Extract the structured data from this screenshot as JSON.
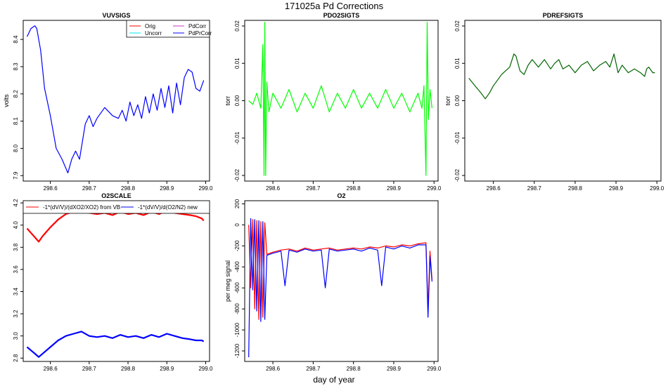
{
  "figure": {
    "title": "171025a   Pd Corrections",
    "xlabel": "day of year"
  },
  "colors": {
    "orig": "#ff0000",
    "uncorr": "#00e5ee",
    "pdcorr": "#cc33cc",
    "pdprcorr": "#0000ff",
    "green": "#00ff00",
    "dark_green": "#006400",
    "red": "#ff0000",
    "blue": "#0000ff"
  },
  "chart_data": [
    {
      "id": "vuvsigs",
      "type": "line",
      "title": "VUVSIGS",
      "xlabel": "",
      "ylabel": "volts",
      "xlim": [
        298.53,
        299.01
      ],
      "ylim": [
        7.88,
        8.47
      ],
      "xticks": [
        298.6,
        298.7,
        298.8,
        298.9,
        299.0
      ],
      "xticklabels": [
        "298.6",
        "298.7",
        "298.8",
        "298.9",
        "299.0"
      ],
      "yticks": [
        7.9,
        8.0,
        8.1,
        8.2,
        8.3,
        8.4
      ],
      "yticklabels": [
        "7.9",
        "8.0",
        "8.1",
        "8.2",
        "8.3",
        "8.4"
      ],
      "legend": {
        "position": "top-right",
        "entries": [
          {
            "label": "Orig",
            "color": "#ff0000"
          },
          {
            "label": "Uncorr",
            "color": "#00e5ee"
          },
          {
            "label": "PdCorr",
            "color": "#cc33cc"
          },
          {
            "label": "PdPrCorr",
            "color": "#0000ff"
          }
        ]
      },
      "series": [
        {
          "name": "PdPrCorr",
          "color": "#0000ff",
          "x": [
            298.54,
            298.55,
            298.56,
            298.565,
            298.575,
            298.585,
            298.6,
            298.615,
            298.63,
            298.645,
            298.655,
            298.665,
            298.675,
            298.69,
            298.7,
            298.71,
            298.72,
            298.74,
            298.76,
            298.775,
            298.785,
            298.795,
            298.805,
            298.815,
            298.825,
            298.835,
            298.845,
            298.855,
            298.865,
            298.875,
            298.885,
            298.895,
            298.905,
            298.915,
            298.925,
            298.935,
            298.945,
            298.955,
            298.965,
            298.975,
            298.985,
            298.995
          ],
          "y": [
            8.41,
            8.44,
            8.45,
            8.44,
            8.36,
            8.22,
            8.12,
            8.0,
            7.96,
            7.91,
            7.96,
            7.99,
            7.96,
            8.09,
            8.12,
            8.08,
            8.11,
            8.15,
            8.12,
            8.11,
            8.14,
            8.1,
            8.17,
            8.12,
            8.16,
            8.11,
            8.19,
            8.13,
            8.2,
            8.14,
            8.22,
            8.15,
            8.23,
            8.13,
            8.24,
            8.16,
            8.26,
            8.29,
            8.28,
            8.22,
            8.21,
            8.25
          ]
        }
      ]
    },
    {
      "id": "pdo2sigts",
      "type": "line",
      "title": "PDO2SIGTS",
      "xlabel": "",
      "ylabel": "torr",
      "xlim": [
        298.53,
        299.01
      ],
      "ylim": [
        -0.0215,
        0.0215
      ],
      "xticks": [
        298.6,
        298.7,
        298.8,
        298.9,
        299.0
      ],
      "xticklabels": [
        "298.6",
        "298.7",
        "298.8",
        "298.9",
        "299.0"
      ],
      "yticks": [
        -0.02,
        -0.01,
        0.0,
        0.01,
        0.02
      ],
      "yticklabels": [
        "-0.02",
        "-0.01",
        "0.00",
        "0.01",
        "0.02"
      ],
      "series": [
        {
          "color": "#00ff00",
          "x": [
            298.54,
            298.55,
            298.56,
            298.57,
            298.575,
            298.578,
            298.58,
            298.582,
            298.585,
            298.59,
            298.6,
            298.62,
            298.64,
            298.66,
            298.68,
            298.7,
            298.72,
            298.74,
            298.76,
            298.78,
            298.8,
            298.82,
            298.84,
            298.86,
            298.88,
            298.9,
            298.92,
            298.94,
            298.96,
            298.97,
            298.975,
            298.98,
            298.983,
            298.986,
            298.99,
            298.995
          ],
          "y": [
            0.0,
            -0.001,
            0.002,
            -0.002,
            0.015,
            -0.02,
            0.021,
            -0.02,
            0.005,
            -0.003,
            0.002,
            -0.002,
            0.003,
            -0.003,
            0.002,
            -0.002,
            0.004,
            -0.003,
            0.002,
            -0.002,
            0.003,
            -0.002,
            0.002,
            -0.002,
            0.003,
            -0.002,
            0.002,
            -0.003,
            0.002,
            -0.002,
            0.004,
            -0.02,
            0.021,
            -0.005,
            0.003,
            -0.002
          ]
        }
      ]
    },
    {
      "id": "pdrefsigts",
      "type": "line",
      "title": "PDREFSIGTS",
      "xlabel": "",
      "ylabel": "torr",
      "xlim": [
        298.53,
        299.01
      ],
      "ylim": [
        -0.0215,
        0.0215
      ],
      "xticks": [
        298.6,
        298.7,
        298.8,
        298.9,
        299.0
      ],
      "xticklabels": [
        "298.6",
        "298.7",
        "298.8",
        "298.9",
        "299.0"
      ],
      "yticks": [
        -0.02,
        -0.01,
        0.0,
        0.01,
        0.02
      ],
      "yticklabels": [
        "-0.02",
        "-0.01",
        "0.00",
        "0.01",
        "0.02"
      ],
      "series": [
        {
          "color": "#006400",
          "x": [
            298.54,
            298.555,
            298.57,
            298.58,
            298.59,
            298.6,
            298.62,
            298.64,
            298.65,
            298.655,
            298.665,
            298.675,
            298.685,
            298.695,
            298.71,
            298.725,
            298.74,
            298.75,
            298.76,
            298.77,
            298.785,
            298.8,
            298.815,
            298.83,
            298.845,
            298.86,
            298.875,
            298.885,
            298.895,
            298.905,
            298.915,
            298.93,
            298.945,
            298.96,
            298.97,
            298.975,
            298.98,
            298.99,
            298.995
          ],
          "y": [
            0.006,
            0.004,
            0.002,
            0.0005,
            0.002,
            0.004,
            0.007,
            0.009,
            0.0125,
            0.012,
            0.008,
            0.007,
            0.0095,
            0.011,
            0.009,
            0.011,
            0.0085,
            0.01,
            0.011,
            0.0085,
            0.0095,
            0.0075,
            0.0095,
            0.0105,
            0.008,
            0.0095,
            0.0105,
            0.009,
            0.0125,
            0.0075,
            0.0095,
            0.0075,
            0.0085,
            0.0075,
            0.0065,
            0.0085,
            0.009,
            0.0075,
            0.0075
          ]
        }
      ]
    },
    {
      "id": "o2scale",
      "type": "line",
      "title": "O2SCALE",
      "xlabel": "",
      "ylabel": "",
      "xlim": [
        298.53,
        299.01
      ],
      "ylim": [
        2.77,
        4.22
      ],
      "xticks": [
        298.6,
        298.7,
        298.8,
        298.9,
        299.0
      ],
      "xticklabels": [
        "298.6",
        "298.7",
        "298.8",
        "298.9",
        "299.0"
      ],
      "yticks": [
        2.8,
        3.0,
        3.2,
        3.4,
        3.6,
        3.8,
        4.0,
        4.2
      ],
      "yticklabels": [
        "2.8",
        "3.0",
        "3.2",
        "3.4",
        "3.6",
        "3.8",
        "4.0",
        "4.2"
      ],
      "legend": {
        "position": "top",
        "entries": [
          {
            "label": "-1*(dV/V)/(dXO2/XO2) from VB",
            "color": "#ff0000"
          },
          {
            "label": "-1*(dV/V)/d(O2/N2) new",
            "color": "#0000ff"
          }
        ]
      },
      "series": [
        {
          "color": "#ff0000",
          "x": [
            298.54,
            298.55,
            298.56,
            298.57,
            298.58,
            298.6,
            298.62,
            298.64,
            298.66,
            298.68,
            298.7,
            298.72,
            298.74,
            298.76,
            298.78,
            298.8,
            298.82,
            298.84,
            298.86,
            298.88,
            298.9,
            298.92,
            298.94,
            298.96,
            298.975,
            298.99,
            298.995
          ],
          "y": [
            3.97,
            3.93,
            3.89,
            3.85,
            3.9,
            3.98,
            4.05,
            4.1,
            4.12,
            4.13,
            4.11,
            4.1,
            4.11,
            4.09,
            4.12,
            4.1,
            4.11,
            4.09,
            4.12,
            4.1,
            4.13,
            4.11,
            4.1,
            4.09,
            4.08,
            4.06,
            4.04
          ]
        },
        {
          "color": "#0000ff",
          "x": [
            298.54,
            298.55,
            298.56,
            298.57,
            298.58,
            298.6,
            298.62,
            298.64,
            298.66,
            298.68,
            298.7,
            298.72,
            298.74,
            298.76,
            298.78,
            298.8,
            298.82,
            298.84,
            298.86,
            298.88,
            298.9,
            298.92,
            298.94,
            298.96,
            298.975,
            298.99,
            298.995
          ],
          "y": [
            2.9,
            2.87,
            2.84,
            2.81,
            2.84,
            2.9,
            2.96,
            3.0,
            3.02,
            3.04,
            3.0,
            2.99,
            3.0,
            2.98,
            3.01,
            2.99,
            3.0,
            2.98,
            3.01,
            2.99,
            3.02,
            3.0,
            2.98,
            2.97,
            2.96,
            2.96,
            2.95
          ]
        }
      ]
    },
    {
      "id": "o2",
      "type": "line",
      "title": "O2",
      "xlabel": "",
      "ylabel": "per meg signal",
      "xlim": [
        298.53,
        299.01
      ],
      "ylim": [
        -1300,
        230
      ],
      "xticks": [
        298.6,
        298.7,
        298.8,
        298.9,
        299.0
      ],
      "xticklabels": [
        "298.6",
        "298.7",
        "298.8",
        "298.9",
        "299.0"
      ],
      "yticks": [
        -1200,
        -1000,
        -800,
        -600,
        -400,
        -200,
        0,
        200
      ],
      "yticklabels": [
        "-1200",
        "-1000",
        "-800",
        "-600",
        "-400",
        "-200",
        "0",
        "200"
      ],
      "series": [
        {
          "color": "#ff0000",
          "x": [
            298.54,
            298.545,
            298.55,
            298.555,
            298.56,
            298.565,
            298.57,
            298.575,
            298.58,
            298.585,
            298.6,
            298.62,
            298.64,
            298.66,
            298.68,
            298.7,
            298.72,
            298.74,
            298.76,
            298.78,
            298.8,
            298.82,
            298.84,
            298.86,
            298.88,
            298.9,
            298.92,
            298.94,
            298.96,
            298.98,
            298.985,
            298.99,
            298.995
          ],
          "y": [
            0,
            -600,
            50,
            -800,
            40,
            -900,
            30,
            -880,
            20,
            -280,
            -260,
            -240,
            -230,
            -250,
            -220,
            -240,
            -230,
            -220,
            -240,
            -230,
            -220,
            -230,
            -210,
            -220,
            -200,
            -210,
            -190,
            -200,
            -180,
            -170,
            -800,
            -250,
            -520
          ]
        },
        {
          "color": "#0000ff",
          "x": [
            298.54,
            298.545,
            298.55,
            298.555,
            298.56,
            298.565,
            298.57,
            298.575,
            298.58,
            298.585,
            298.6,
            298.62,
            298.63,
            298.64,
            298.66,
            298.68,
            298.7,
            298.72,
            298.73,
            298.74,
            298.76,
            298.78,
            298.8,
            298.82,
            298.84,
            298.86,
            298.87,
            298.88,
            298.9,
            298.92,
            298.94,
            298.96,
            298.98,
            298.985,
            298.99,
            298.995
          ],
          "y": [
            -1260,
            60,
            -620,
            50,
            -820,
            40,
            -920,
            30,
            -900,
            -290,
            -270,
            -250,
            -580,
            -240,
            -260,
            -230,
            -250,
            -240,
            -600,
            -230,
            -250,
            -240,
            -230,
            -250,
            -220,
            -240,
            -580,
            -210,
            -230,
            -200,
            -220,
            -190,
            -190,
            -880,
            -300,
            -540
          ]
        }
      ]
    }
  ]
}
